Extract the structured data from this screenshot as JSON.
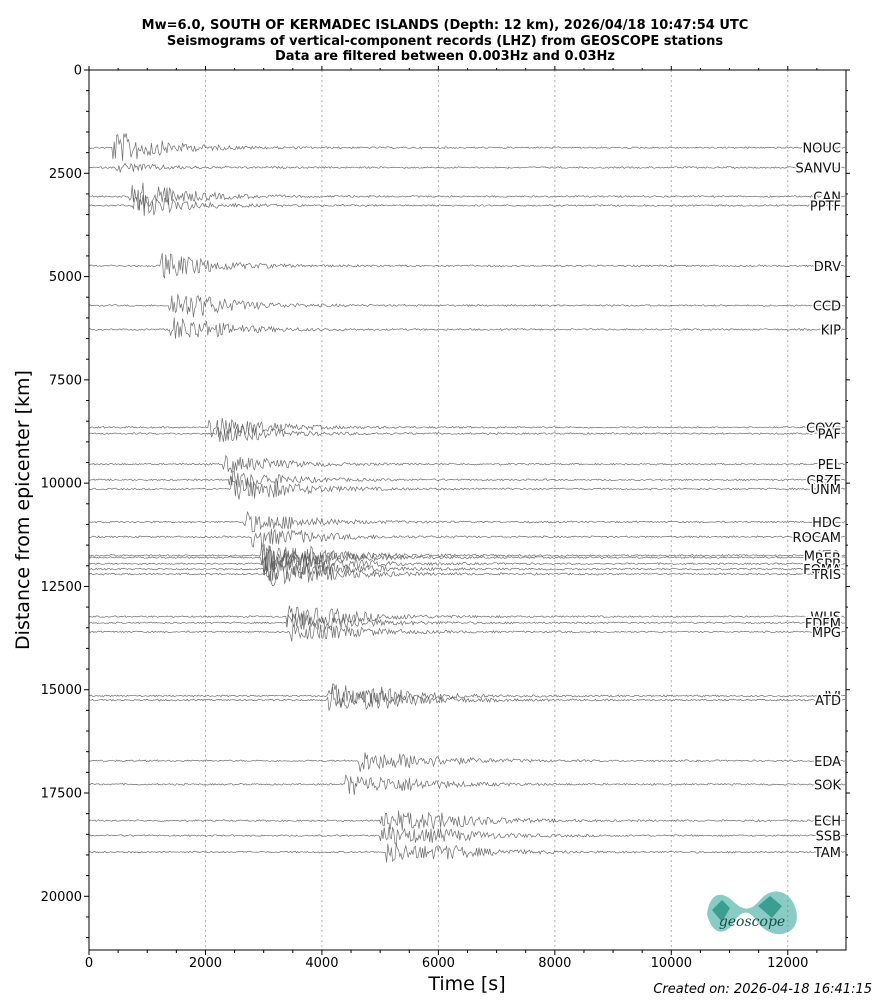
{
  "chart_data": {
    "type": "line",
    "title_lines": [
      "Mw=6.0, SOUTH OF KERMADEC ISLANDS (Depth: 12 km), 2026/04/18 10:47:54 UTC",
      "Seismograms of vertical-component records (LHZ) from GEOSCOPE stations",
      "Data are filtered between 0.003Hz and 0.03Hz"
    ],
    "xlabel": "Time [s]",
    "ylabel": "Distance from epicenter [km]",
    "xlim": [
      0,
      13000
    ],
    "ylim": [
      0,
      21300
    ],
    "y_inverted": true,
    "grid_x": true,
    "x_ticks": [
      "0",
      "2000",
      "4000",
      "6000",
      "8000",
      "10000",
      "12000"
    ],
    "y_ticks": [
      "0",
      "2500",
      "5000",
      "7500",
      "10000",
      "12500",
      "15000",
      "17500",
      "20000"
    ],
    "stations": [
      {
        "name": "NOUC",
        "distance": 1880,
        "label_distance": 1880,
        "arrival": 500,
        "amp": 1.0
      },
      {
        "name": "SANVU",
        "distance": 2360,
        "label_distance": 2360,
        "arrival": 570,
        "amp": 0.4
      },
      {
        "name": "CAN",
        "distance": 3060,
        "label_distance": 3060,
        "arrival": 800,
        "amp": 1.0
      },
      {
        "name": "PPTF",
        "distance": 3280,
        "label_distance": 3280,
        "arrival": 840,
        "amp": 0.8
      },
      {
        "name": "DRV",
        "distance": 4740,
        "label_distance": 4740,
        "arrival": 1300,
        "amp": 0.9
      },
      {
        "name": "CCD",
        "distance": 5700,
        "label_distance": 5700,
        "arrival": 1480,
        "amp": 1.0
      },
      {
        "name": "KIP",
        "distance": 6280,
        "label_distance": 6280,
        "arrival": 1500,
        "amp": 0.9
      },
      {
        "name": "COYC",
        "distance": 8650,
        "label_distance": 8650,
        "arrival": 2150,
        "amp": 0.8
      },
      {
        "name": "PAF",
        "distance": 8800,
        "label_distance": 8800,
        "arrival": 2300,
        "amp": 0.7
      },
      {
        "name": "PEL",
        "distance": 9540,
        "label_distance": 9540,
        "arrival": 2400,
        "amp": 0.7
      },
      {
        "name": "CRZF",
        "distance": 9920,
        "label_distance": 9920,
        "arrival": 2500,
        "amp": 0.7
      },
      {
        "name": "UNM",
        "distance": 10140,
        "label_distance": 10140,
        "arrival": 2550,
        "amp": 0.9
      },
      {
        "name": "HDC",
        "distance": 10940,
        "label_distance": 10940,
        "arrival": 2750,
        "amp": 0.8
      },
      {
        "name": "ROCAM",
        "distance": 11300,
        "label_distance": 11300,
        "arrival": 2900,
        "amp": 0.8
      },
      {
        "name": "MATO",
        "distance": 11750,
        "label_distance": 11750,
        "arrival": 3050,
        "amp": 1.0
      },
      {
        "name": "RER",
        "distance": 11800,
        "label_distance": 11800,
        "arrival": 3050,
        "amp": 1.0
      },
      {
        "name": "SPB",
        "distance": 11950,
        "label_distance": 11950,
        "arrival": 3100,
        "amp": 1.0
      },
      {
        "name": "FOMA",
        "distance": 12080,
        "label_distance": 12080,
        "arrival": 3100,
        "amp": 1.0
      },
      {
        "name": "TRIS",
        "distance": 12200,
        "label_distance": 12200,
        "arrival": 3150,
        "amp": 1.0
      },
      {
        "name": "WUS",
        "distance": 13230,
        "label_distance": 13230,
        "arrival": 3500,
        "amp": 0.9
      },
      {
        "name": "FDFM",
        "distance": 13380,
        "label_distance": 13380,
        "arrival": 3500,
        "amp": 0.8
      },
      {
        "name": "MPG",
        "distance": 13600,
        "label_distance": 13600,
        "arrival": 3550,
        "amp": 0.8
      },
      {
        "name": "IVI",
        "distance": 15150,
        "label_distance": 15150,
        "arrival": 4200,
        "amp": 1.0
      },
      {
        "name": "ATD",
        "distance": 15250,
        "label_distance": 15250,
        "arrival": 4200,
        "amp": 1.0
      },
      {
        "name": "EDA",
        "distance": 16720,
        "label_distance": 16720,
        "arrival": 4700,
        "amp": 0.9
      },
      {
        "name": "SOK",
        "distance": 17290,
        "label_distance": 17290,
        "arrival": 4500,
        "amp": 0.9
      },
      {
        "name": "ECH",
        "distance": 18170,
        "label_distance": 18170,
        "arrival": 5100,
        "amp": 1.0
      },
      {
        "name": "SSB",
        "distance": 18530,
        "label_distance": 18530,
        "arrival": 5100,
        "amp": 0.9
      },
      {
        "name": "TAM",
        "distance": 18930,
        "label_distance": 18930,
        "arrival": 5200,
        "amp": 0.9
      }
    ],
    "trace_color": "#555555",
    "grid_color": "#b0b0b0"
  },
  "logo": {
    "text": "geoscope",
    "color": "#2aa198"
  },
  "footer": {
    "created": "Created on: 2026-04-18 16:41:15"
  }
}
